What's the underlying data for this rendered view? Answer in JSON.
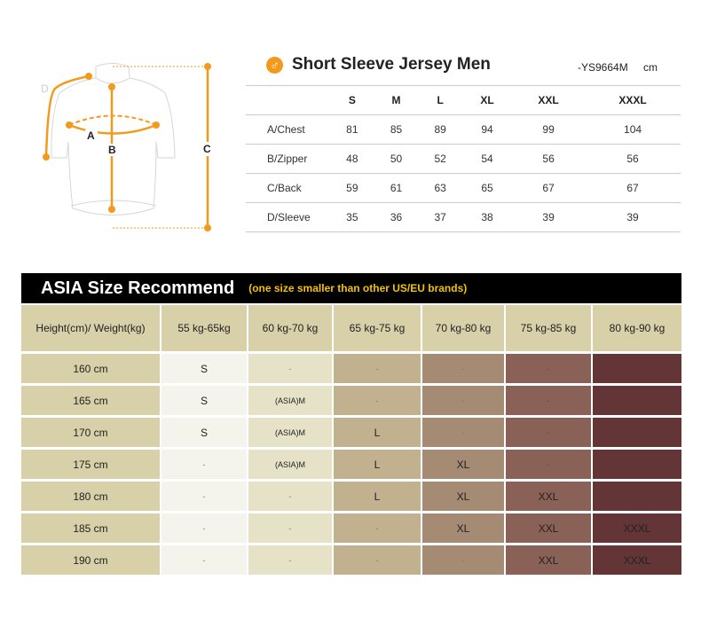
{
  "header": {
    "title": "Short Sleeve Jersey Men",
    "code": "-YS9664M",
    "unit": "cm",
    "icon": "male-icon"
  },
  "diagram": {
    "labels": [
      "A",
      "B",
      "C",
      "D"
    ],
    "accent": "#f39a1c"
  },
  "measurements": {
    "sizes": [
      "S",
      "M",
      "L",
      "XL",
      "XXL",
      "XXXL"
    ],
    "rows": [
      {
        "label": "A/Chest",
        "values": [
          "81",
          "85",
          "89",
          "94",
          "99",
          "104"
        ]
      },
      {
        "label": "B/Zipper",
        "values": [
          "48",
          "50",
          "52",
          "54",
          "56",
          "56"
        ]
      },
      {
        "label": "C/Back",
        "values": [
          "59",
          "61",
          "63",
          "65",
          "67",
          "67"
        ]
      },
      {
        "label": "D/Sleeve",
        "values": [
          "35",
          "36",
          "37",
          "38",
          "39",
          "39"
        ]
      }
    ]
  },
  "asia": {
    "title": "ASIA Size Recommend",
    "note": "(one size smaller than other US/EU brands)",
    "corner": "Height(cm)/ Weight(kg)",
    "weights": [
      "55 kg-65kg",
      "60 kg-70 kg",
      "65 kg-75 kg",
      "70 kg-80 kg",
      "75 kg-85 kg",
      "80 kg-90 kg"
    ],
    "rows": [
      {
        "height": "160 cm",
        "values": [
          "S",
          "-",
          "-",
          "-",
          "-",
          "-"
        ]
      },
      {
        "height": "165 cm",
        "values": [
          "S",
          "(ASIA)M",
          "-",
          "-",
          "-",
          "-"
        ]
      },
      {
        "height": "170 cm",
        "values": [
          "S",
          "(ASIA)M",
          "L",
          "-",
          "-",
          "-"
        ]
      },
      {
        "height": "175 cm",
        "values": [
          "-",
          "(ASIA)M",
          "L",
          "XL",
          "-",
          "-"
        ]
      },
      {
        "height": "180 cm",
        "values": [
          "-",
          "-",
          "L",
          "XL",
          "XXL",
          "-"
        ]
      },
      {
        "height": "185 cm",
        "values": [
          "-",
          "-",
          "-",
          "XL",
          "XXL",
          "XXXL"
        ]
      },
      {
        "height": "190 cm",
        "values": [
          "-",
          "-",
          "-",
          "-",
          "XXL",
          "XXXL"
        ]
      }
    ],
    "colors": [
      "#f5f4ec",
      "#e6e2c8",
      "#c2b18e",
      "#a58a74",
      "#8a6156",
      "#643536"
    ],
    "header_color": "#d8d0a8"
  }
}
